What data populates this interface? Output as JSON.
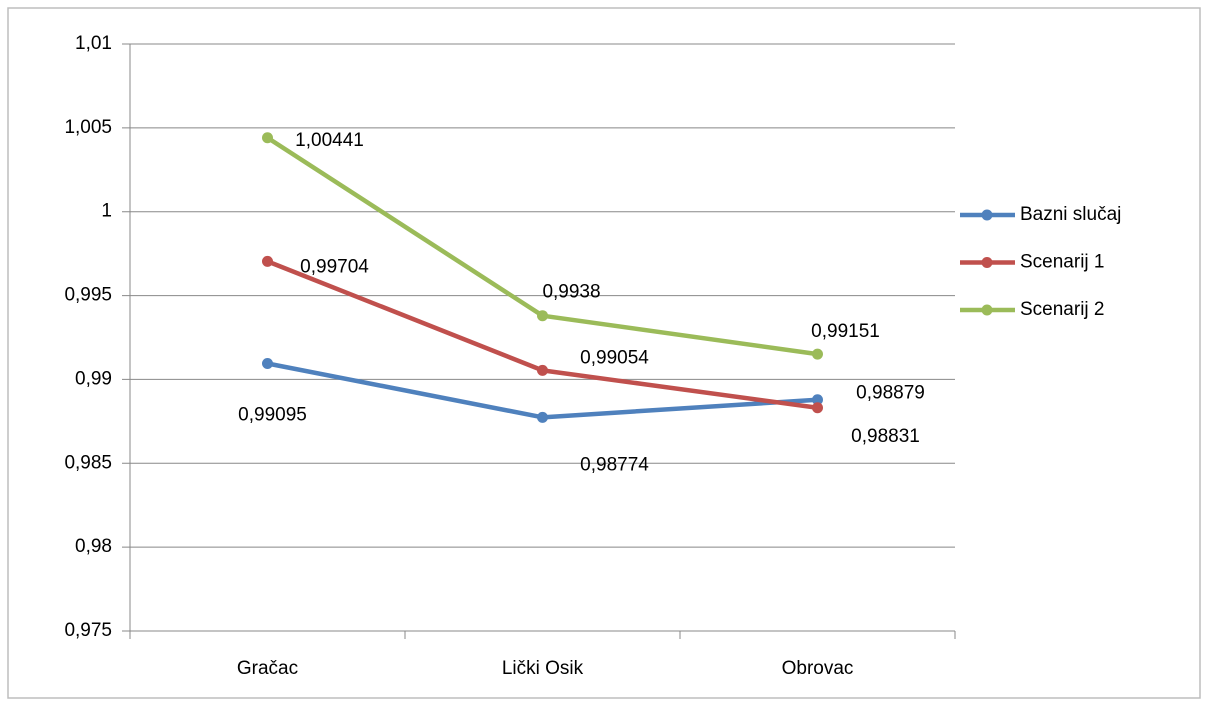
{
  "chart_data": {
    "type": "line",
    "categories": [
      "Gračac",
      "Lički Osik",
      "Obrovac"
    ],
    "series": [
      {
        "name": "Bazni slučaj",
        "color": "#4f81bd",
        "values": [
          0.99095,
          0.98774,
          0.98879
        ],
        "value_labels": [
          "0,99095",
          "0,98774",
          "0,98879"
        ]
      },
      {
        "name": "Scenarij 1",
        "color": "#c0504d",
        "values": [
          0.99704,
          0.99054,
          0.98831
        ],
        "value_labels": [
          "0,99704",
          "0,99054",
          "0,98831"
        ]
      },
      {
        "name": "Scenarij 2",
        "color": "#9bbb59",
        "values": [
          1.00441,
          0.9938,
          0.99151
        ],
        "value_labels": [
          "1,00441",
          "0,9938",
          "0,99151"
        ]
      }
    ],
    "ylim": [
      0.975,
      1.01
    ],
    "yticks": [
      {
        "value": 0.975,
        "label": "0,975"
      },
      {
        "value": 0.98,
        "label": "0,98"
      },
      {
        "value": 0.985,
        "label": "0,985"
      },
      {
        "value": 0.99,
        "label": "0,99"
      },
      {
        "value": 0.995,
        "label": "0,995"
      },
      1,
      {
        "value": 1.005,
        "label": "1,005"
      },
      {
        "value": 1.01,
        "label": "1,01"
      }
    ],
    "grid": true,
    "legend": "right"
  }
}
